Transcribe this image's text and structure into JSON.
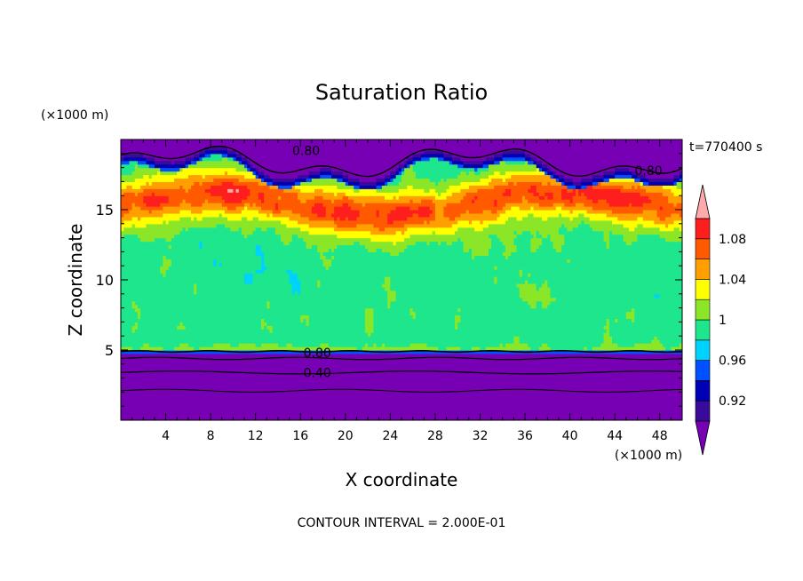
{
  "chart_data": {
    "type": "heatmap",
    "title": "Saturation Ratio",
    "xlabel": "X coordinate",
    "ylabel": "Z coordinate",
    "x_unit": "(×1000 m)",
    "y_unit": "(×1000 m)",
    "time_label": "t=770400 s",
    "footer": "CONTOUR INTERVAL = 2.000E-01",
    "xlim": [
      0,
      50
    ],
    "ylim": [
      0,
      20
    ],
    "x_ticks": [
      "4",
      "8",
      "12",
      "16",
      "20",
      "24",
      "28",
      "32",
      "36",
      "40",
      "44",
      "48"
    ],
    "y_ticks": [
      "5",
      "10",
      "15"
    ],
    "contour_labels": [
      {
        "text": "0.80",
        "x": 16.5,
        "y": 19.2
      },
      {
        "text": "0.80",
        "x": 47.0,
        "y": 17.8
      },
      {
        "text": "0.80",
        "x": 17.5,
        "y": 4.8
      },
      {
        "text": "0.40",
        "x": 17.5,
        "y": 3.4
      }
    ],
    "colorbar": {
      "levels": [
        0.9,
        0.92,
        0.94,
        0.96,
        0.98,
        1.0,
        1.02,
        1.04,
        1.06,
        1.08,
        1.1
      ],
      "tick_labels": [
        "0.92",
        "0.96",
        "1",
        "1.04",
        "1.08"
      ],
      "colors": [
        "#3a0a9a",
        "#0000b4",
        "#0050ff",
        "#00d2ff",
        "#1ee68c",
        "#8ce628",
        "#ffff00",
        "#ffa000",
        "#ff5a00",
        "#ff1e1e"
      ],
      "under_color": "#7800b4",
      "over_color": "#ffaaaa"
    }
  }
}
